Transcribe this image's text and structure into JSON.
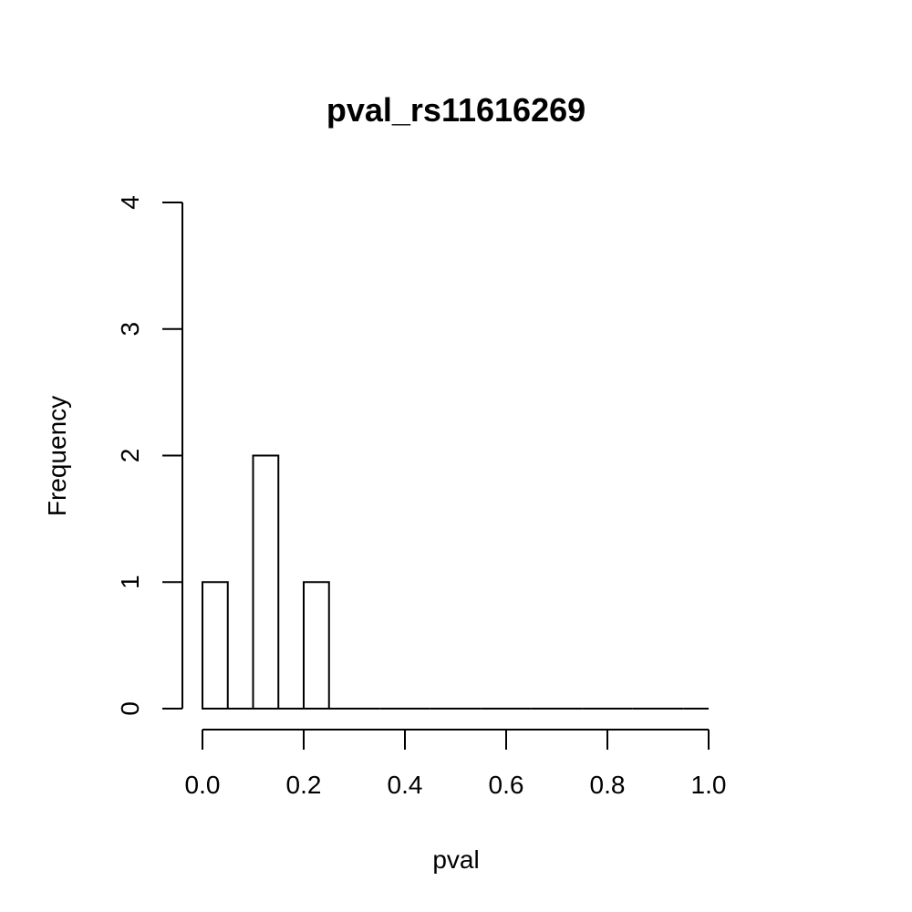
{
  "chart_data": {
    "type": "bar",
    "title": "pval_rs11616269",
    "xlabel": "pval",
    "ylabel": "Frequency",
    "bin_edges": [
      0.0,
      0.05,
      0.1,
      0.15,
      0.2,
      0.25,
      0.3,
      0.35,
      0.4,
      0.45,
      0.5,
      0.55,
      0.6,
      0.65,
      0.7,
      0.75,
      0.8,
      0.85,
      0.9,
      0.95,
      1.0
    ],
    "values": [
      1,
      0,
      2,
      0,
      1,
      0,
      0,
      0,
      0,
      0,
      0,
      0,
      0,
      0,
      0,
      0,
      0,
      0,
      0,
      0
    ],
    "xlim": [
      0,
      1
    ],
    "ylim": [
      0,
      4
    ],
    "x_ticks": [
      0.0,
      0.2,
      0.4,
      0.6,
      0.8,
      1.0
    ],
    "x_tick_labels": [
      "0.0",
      "0.2",
      "0.4",
      "0.6",
      "0.8",
      "1.0"
    ],
    "y_ticks": [
      0,
      1,
      2,
      3,
      4
    ],
    "y_tick_labels": [
      "0",
      "1",
      "2",
      "3",
      "4"
    ],
    "grid": false,
    "legend": "none",
    "colors": {
      "bar_fill": "#ffffff",
      "bar_stroke": "#000000"
    }
  }
}
